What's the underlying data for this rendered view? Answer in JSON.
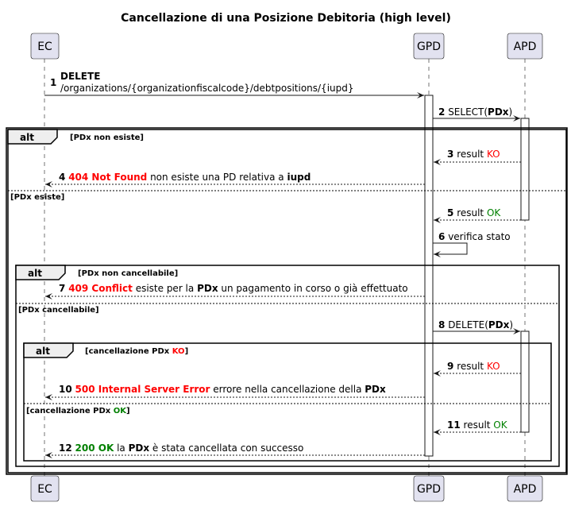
{
  "title": "Cancellazione di una Posizione Debitoria (high level)",
  "participants": {
    "ec": "EC",
    "gpd": "GPD",
    "apd": "APD"
  },
  "frames": {
    "alt_label": "alt",
    "outer": {
      "guard1": "[PDx non esiste]",
      "guard2": "[PDx esiste]"
    },
    "middle": {
      "guard1": "[PDx non cancellabile]",
      "guard2": "[PDx cancellabile]"
    },
    "inner": {
      "guard1_pre": "[cancellazione PDx ",
      "guard1_ko": "KO",
      "guard1_post": "]",
      "guard2_pre": "[cancellazione PDx ",
      "guard2_ok": "OK",
      "guard2_post": "]"
    }
  },
  "messages": {
    "m1": {
      "num": "1",
      "line1": "DELETE",
      "line2": "/organizations/{organizationfiscalcode}/debtpositions/{iupd}"
    },
    "m2": {
      "num": "2",
      "pre": "SELECT(",
      "bold": "PDx",
      "post": ")"
    },
    "m3": {
      "num": "3",
      "text": "result ",
      "status": "KO"
    },
    "m4": {
      "num": "4",
      "status": "404 Not Found",
      "text": " non esiste una PD relativa a ",
      "bold": "iupd"
    },
    "m5": {
      "num": "5",
      "text": "result ",
      "status": "OK"
    },
    "m6": {
      "num": "6",
      "text": "verifica stato"
    },
    "m7": {
      "num": "7",
      "status": "409 Conflict",
      "text": " esiste per la ",
      "bold": "PDx",
      "post": " un pagamento in corso o già effettuato"
    },
    "m8": {
      "num": "8",
      "pre": "DELETE(",
      "bold": "PDx",
      "post": ")"
    },
    "m9": {
      "num": "9",
      "text": "result ",
      "status": "KO"
    },
    "m10": {
      "num": "10",
      "status": "500 Internal Server Error",
      "text": " errore nella cancellazione della ",
      "bold": "PDx"
    },
    "m11": {
      "num": "11",
      "text": "result ",
      "status": "OK"
    },
    "m12": {
      "num": "12",
      "status": "200 OK",
      "text": " la ",
      "bold": "PDx",
      "post": " è stata cancellata con successo"
    }
  },
  "colors": {
    "error": "#ff0000",
    "success": "#008000",
    "participant_fill": "#e2e2f0"
  }
}
